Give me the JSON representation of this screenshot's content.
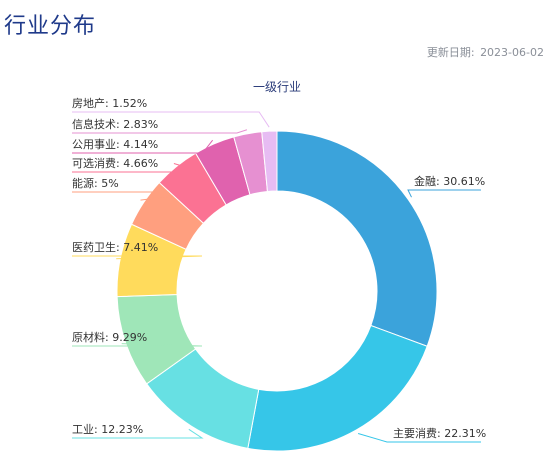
{
  "header": {
    "title": "行业分布",
    "update_label": "更新日期:",
    "update_date": "2023-06-02"
  },
  "chart_data": {
    "type": "pie",
    "subtype": "donut",
    "title": "一级行业",
    "slices": [
      {
        "label": "金融",
        "value": 30.61,
        "display": "30.61%",
        "color": "#3ba3db"
      },
      {
        "label": "主要消费",
        "value": 22.31,
        "display": "22.31%",
        "color": "#36c6e8"
      },
      {
        "label": "工业",
        "value": 12.23,
        "display": "12.23%",
        "color": "#67e0e3"
      },
      {
        "label": "原材料",
        "value": 9.29,
        "display": "9.29%",
        "color": "#9fe6b8"
      },
      {
        "label": "医药卫生",
        "value": 7.41,
        "display": "7.41%",
        "color": "#ffdb5c"
      },
      {
        "label": "能源",
        "value": 5,
        "display": "5%",
        "color": "#ff9f7f"
      },
      {
        "label": "可选消费",
        "value": 4.66,
        "display": "4.66%",
        "color": "#fb7293"
      },
      {
        "label": "公用事业",
        "value": 4.14,
        "display": "4.14%",
        "color": "#e062ae"
      },
      {
        "label": "信息技术",
        "value": 2.83,
        "display": "2.83%",
        "color": "#e690d1"
      },
      {
        "label": "房地产",
        "value": 1.52,
        "display": "1.52%",
        "color": "#e7bcf3"
      }
    ],
    "legend": "none"
  }
}
